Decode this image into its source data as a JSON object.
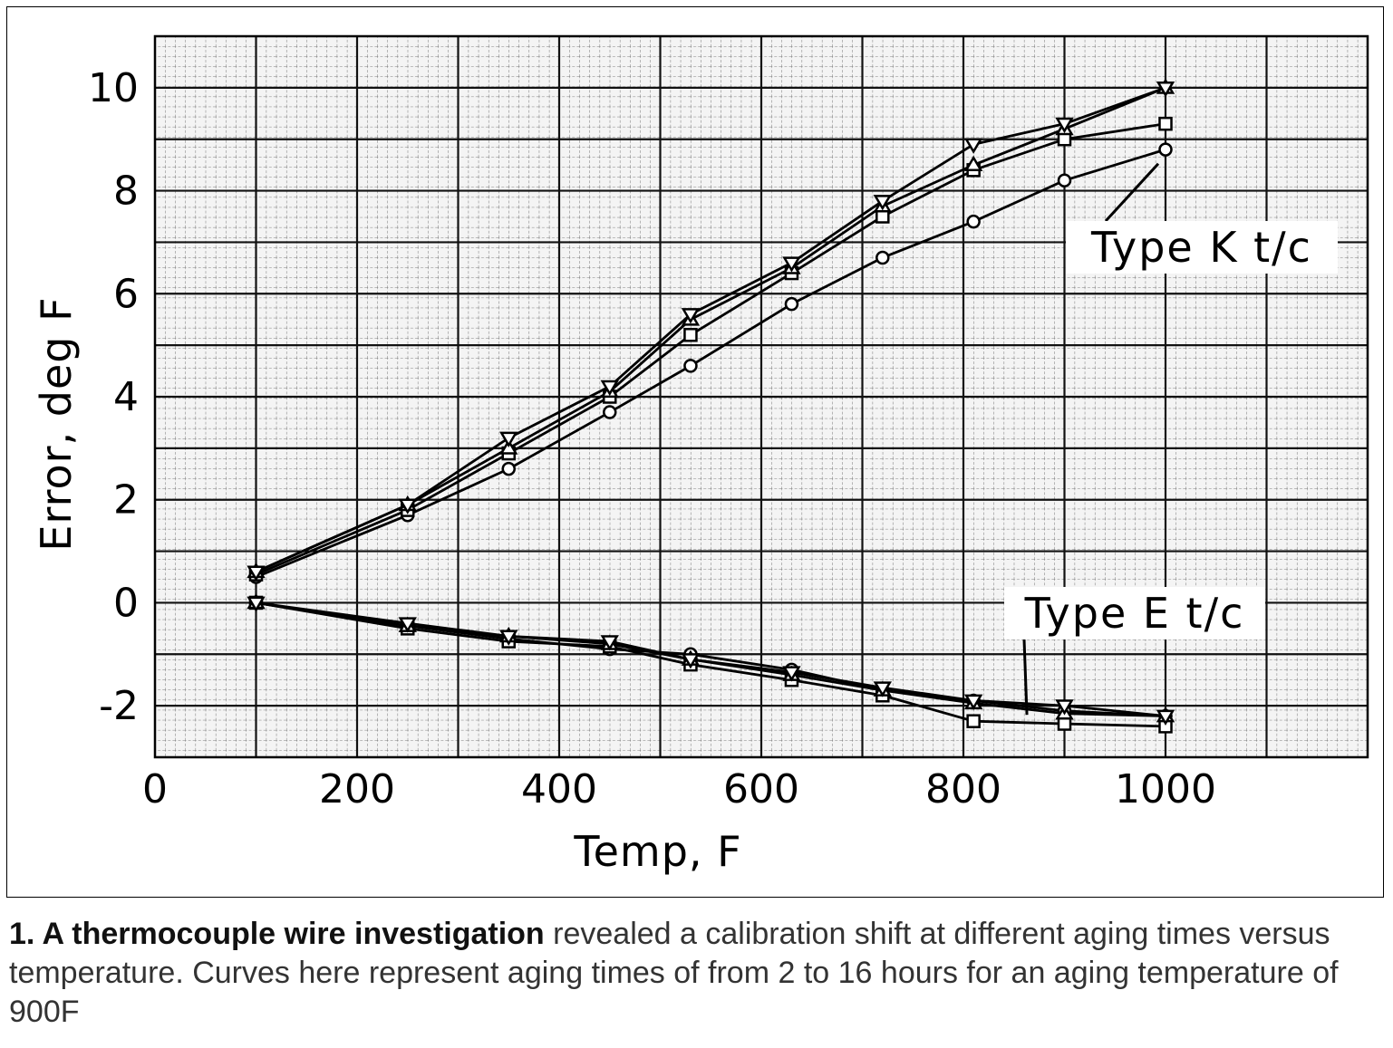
{
  "chart_data": {
    "type": "line",
    "xlabel": "Temp, F",
    "ylabel": "Error, deg F",
    "xlim": [
      0,
      1200
    ],
    "ylim": [
      -3,
      11
    ],
    "x_ticks": [
      "0",
      "200",
      "400",
      "600",
      "800",
      "1000"
    ],
    "x_tick_values": [
      0,
      200,
      400,
      600,
      800,
      1000
    ],
    "y_ticks": [
      "10",
      "8",
      "6",
      "4",
      "2",
      "0",
      "-2"
    ],
    "y_tick_values": [
      10,
      8,
      6,
      4,
      2,
      0,
      -2
    ],
    "grid": true,
    "annotations": [
      {
        "text": "Type K t/c",
        "x": 1000,
        "y": 7.0,
        "arrow_to": [
          1000,
          8.7
        ]
      },
      {
        "text": "Type E t/c",
        "x": 970,
        "y": 0.0,
        "arrow_to": [
          870,
          -2.0
        ]
      }
    ],
    "series": [
      {
        "group": "Type K t/c",
        "marker": "circle",
        "x": [
          100,
          250,
          350,
          450,
          530,
          630,
          720,
          810,
          900,
          1000
        ],
        "y": [
          0.5,
          1.7,
          2.6,
          3.7,
          4.6,
          5.8,
          6.7,
          7.4,
          8.2,
          8.8
        ]
      },
      {
        "group": "Type K t/c",
        "marker": "square",
        "x": [
          100,
          250,
          350,
          450,
          530,
          630,
          720,
          810,
          900,
          1000
        ],
        "y": [
          0.55,
          1.8,
          2.9,
          4.0,
          5.2,
          6.4,
          7.5,
          8.4,
          9.0,
          9.3
        ]
      },
      {
        "group": "Type K t/c",
        "marker": "triangle-up",
        "x": [
          100,
          250,
          350,
          450,
          530,
          630,
          720,
          810,
          900,
          1000
        ],
        "y": [
          0.6,
          1.9,
          3.0,
          4.1,
          5.5,
          6.5,
          7.7,
          8.5,
          9.2,
          10.0
        ]
      },
      {
        "group": "Type K t/c",
        "marker": "triangle-down",
        "x": [
          100,
          250,
          350,
          450,
          530,
          630,
          720,
          810,
          900,
          1000
        ],
        "y": [
          0.6,
          1.9,
          3.2,
          4.2,
          5.6,
          6.6,
          7.8,
          8.9,
          9.3,
          10.0
        ]
      },
      {
        "group": "Type E t/c",
        "marker": "circle",
        "x": [
          100,
          250,
          350,
          450,
          530,
          630,
          720,
          810,
          900,
          1000
        ],
        "y": [
          0.0,
          -0.45,
          -0.7,
          -0.9,
          -1.0,
          -1.3,
          -1.7,
          -1.9,
          -2.1,
          -2.2
        ]
      },
      {
        "group": "Type E t/c",
        "marker": "square",
        "x": [
          100,
          250,
          350,
          450,
          530,
          630,
          720,
          810,
          900,
          1000
        ],
        "y": [
          0.0,
          -0.5,
          -0.75,
          -0.85,
          -1.2,
          -1.5,
          -1.8,
          -2.3,
          -2.35,
          -2.4
        ]
      },
      {
        "group": "Type E t/c",
        "marker": "triangle-up",
        "x": [
          100,
          250,
          350,
          450,
          530,
          630,
          720,
          810,
          900,
          1000
        ],
        "y": [
          0.0,
          -0.45,
          -0.65,
          -0.8,
          -1.1,
          -1.4,
          -1.7,
          -1.95,
          -2.15,
          -2.2
        ]
      },
      {
        "group": "Type E t/c",
        "marker": "triangle-down",
        "x": [
          100,
          250,
          350,
          450,
          530,
          630,
          720,
          810,
          900,
          1000
        ],
        "y": [
          0.0,
          -0.4,
          -0.65,
          -0.75,
          -1.1,
          -1.35,
          -1.65,
          -1.9,
          -2.0,
          -2.2
        ]
      }
    ]
  },
  "caption": {
    "lead": "1. A thermocouple wire investigation",
    "body": " revealed a calibration shift at different aging times versus temperature. Curves here represent aging times of from 2 to 16 hours for an aging temperature of 900F"
  }
}
